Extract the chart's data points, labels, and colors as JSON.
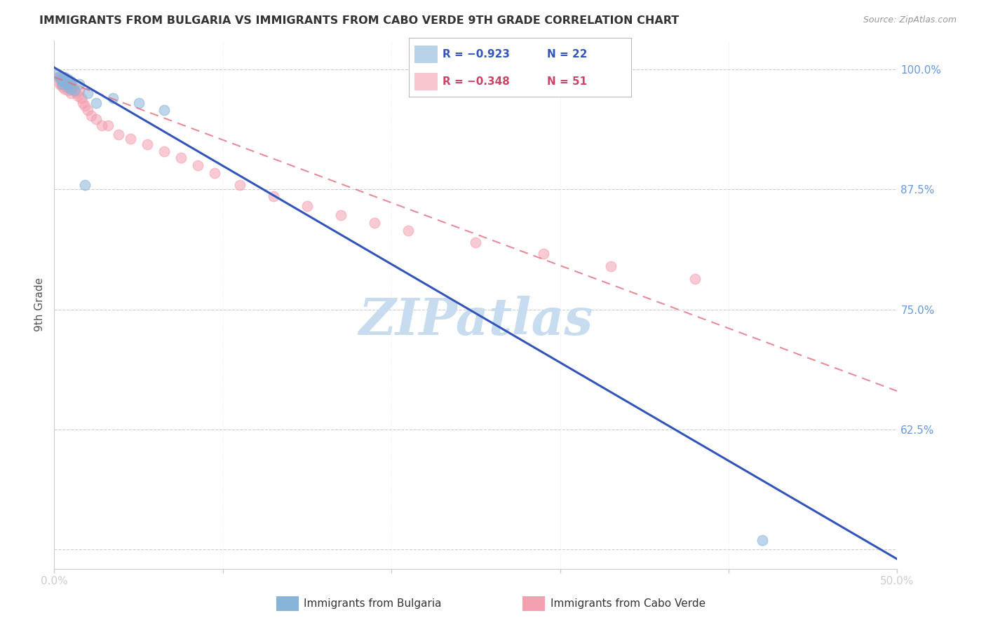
{
  "title": "IMMIGRANTS FROM BULGARIA VS IMMIGRANTS FROM CABO VERDE 9TH GRADE CORRELATION CHART",
  "source": "Source: ZipAtlas.com",
  "ylabel": "9th Grade",
  "y_ticks": [
    0.5,
    0.625,
    0.75,
    0.875,
    1.0
  ],
  "y_tick_labels": [
    "",
    "62.5%",
    "75.0%",
    "87.5%",
    "100.0%"
  ],
  "xlim": [
    0.0,
    0.5
  ],
  "ylim": [
    0.48,
    1.03
  ],
  "bulgaria_color": "#89B4D9",
  "cabo_verde_color": "#F4A0B0",
  "bulgaria_line_color": "#3355BB",
  "cabo_verde_line_color": "#E07080",
  "watermark": "ZIPatlas",
  "bg_color": "#FFFFFF",
  "grid_color": "#CCCCCC",
  "legend_R_bulgaria": "R = −0.923",
  "legend_N_bulgaria": "N = 22",
  "legend_R_cabo": "R = −0.348",
  "legend_N_cabo": "N = 51",
  "bulgaria_scatter_x": [
    0.002,
    0.003,
    0.004,
    0.005,
    0.005,
    0.006,
    0.006,
    0.007,
    0.008,
    0.008,
    0.009,
    0.01,
    0.01,
    0.012,
    0.015,
    0.018,
    0.02,
    0.025,
    0.035,
    0.05,
    0.065,
    0.42
  ],
  "bulgaria_scatter_y": [
    0.995,
    0.992,
    0.99,
    0.988,
    0.985,
    0.992,
    0.988,
    0.985,
    0.99,
    0.982,
    0.985,
    0.98,
    0.988,
    0.978,
    0.985,
    0.88,
    0.975,
    0.965,
    0.97,
    0.965,
    0.958,
    0.51
  ],
  "cabo_scatter_x": [
    0.002,
    0.003,
    0.003,
    0.004,
    0.004,
    0.005,
    0.005,
    0.005,
    0.006,
    0.006,
    0.006,
    0.007,
    0.007,
    0.008,
    0.008,
    0.008,
    0.009,
    0.009,
    0.01,
    0.01,
    0.01,
    0.011,
    0.012,
    0.013,
    0.014,
    0.015,
    0.016,
    0.017,
    0.018,
    0.02,
    0.022,
    0.025,
    0.028,
    0.032,
    0.038,
    0.045,
    0.055,
    0.065,
    0.075,
    0.085,
    0.095,
    0.11,
    0.13,
    0.15,
    0.17,
    0.19,
    0.21,
    0.25,
    0.29,
    0.33,
    0.38
  ],
  "cabo_scatter_y": [
    0.992,
    0.99,
    0.985,
    0.99,
    0.985,
    0.988,
    0.985,
    0.982,
    0.99,
    0.985,
    0.98,
    0.985,
    0.982,
    0.988,
    0.984,
    0.978,
    0.986,
    0.98,
    0.985,
    0.982,
    0.975,
    0.982,
    0.978,
    0.975,
    0.972,
    0.978,
    0.97,
    0.965,
    0.962,
    0.958,
    0.952,
    0.948,
    0.942,
    0.942,
    0.932,
    0.928,
    0.922,
    0.915,
    0.908,
    0.9,
    0.892,
    0.88,
    0.868,
    0.858,
    0.848,
    0.84,
    0.832,
    0.82,
    0.808,
    0.795,
    0.782
  ],
  "bulgaria_line_x": [
    0.0,
    0.5
  ],
  "bulgaria_line_y": [
    1.002,
    0.49
  ],
  "cabo_line_x": [
    0.0,
    0.5
  ],
  "cabo_line_y": [
    0.992,
    0.665
  ]
}
